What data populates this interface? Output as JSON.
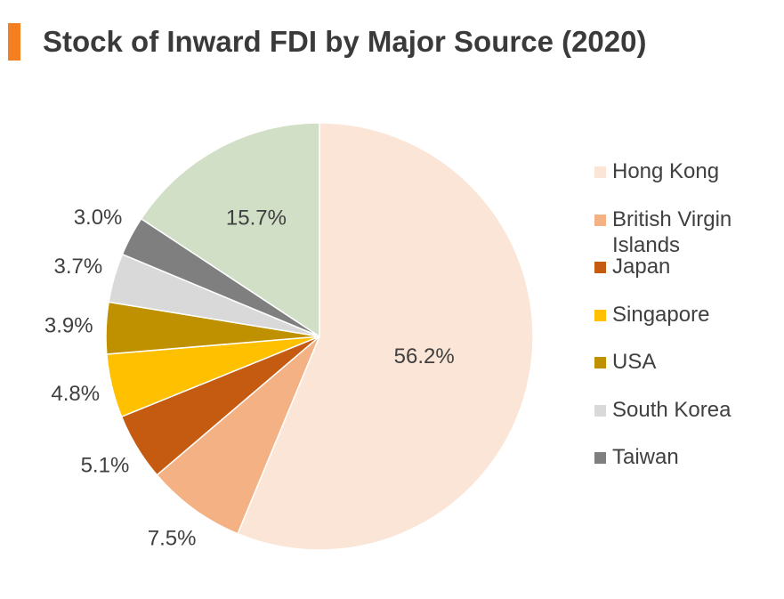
{
  "chart_data": {
    "type": "pie",
    "title": "Stock of Inward FDI by Major Source (2020)",
    "categories": [
      "Hong Kong",
      "British Virgin Islands",
      "Japan",
      "Singapore",
      "USA",
      "South Korea",
      "Taiwan",
      null
    ],
    "values": [
      56.2,
      7.5,
      5.1,
      4.8,
      3.9,
      3.7,
      3.0,
      15.7
    ],
    "value_labels": [
      "56.2%",
      "7.5%",
      "5.1%",
      "4.8%",
      "3.9%",
      "3.7%",
      "3.0%",
      "15.7%"
    ],
    "colors": [
      "#fbe5d6",
      "#f4b183",
      "#c55a11",
      "#ffc000",
      "#bf9000",
      "#d9d9d9",
      "#7f7f7f",
      "#d0dfc6"
    ],
    "legend": "right"
  }
}
